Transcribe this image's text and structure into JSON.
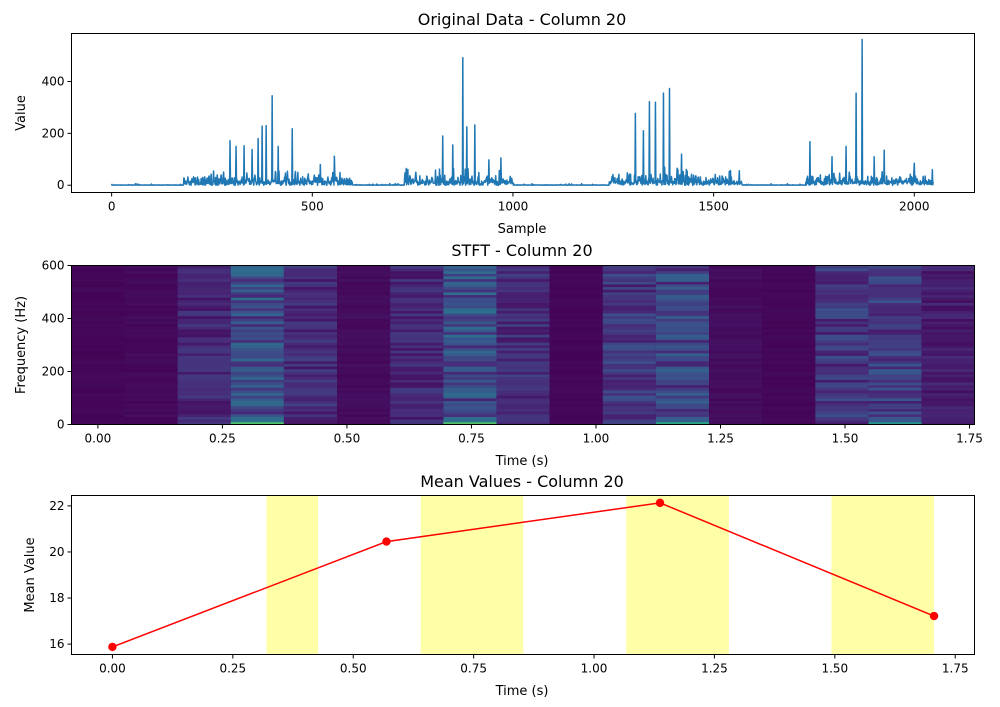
{
  "chart_data": [
    {
      "type": "line",
      "title": "Original Data - Column 20",
      "xlabel": "Sample",
      "ylabel": "Value",
      "xlim": [
        -100,
        2150
      ],
      "ylim": [
        -28,
        585
      ],
      "xticks": [
        0,
        500,
        1000,
        1500,
        2000
      ],
      "yticks": [
        0,
        200,
        400
      ],
      "color": "#1f77b4",
      "n_samples": 2048,
      "active_segments": [
        {
          "start": 180,
          "end": 600,
          "amp": 55
        },
        {
          "start": 730,
          "end": 1000,
          "amp": 65
        },
        {
          "start": 1240,
          "end": 1570,
          "amp": 70
        },
        {
          "start": 1730,
          "end": 2047,
          "amp": 60
        }
      ],
      "peaks": [
        {
          "x": 295,
          "y": 172
        },
        {
          "x": 310,
          "y": 150
        },
        {
          "x": 330,
          "y": 152
        },
        {
          "x": 350,
          "y": 138
        },
        {
          "x": 365,
          "y": 180
        },
        {
          "x": 375,
          "y": 228
        },
        {
          "x": 385,
          "y": 230
        },
        {
          "x": 400,
          "y": 345
        },
        {
          "x": 415,
          "y": 150
        },
        {
          "x": 450,
          "y": 218
        },
        {
          "x": 520,
          "y": 80
        },
        {
          "x": 555,
          "y": 112
        },
        {
          "x": 825,
          "y": 190
        },
        {
          "x": 850,
          "y": 155
        },
        {
          "x": 875,
          "y": 492
        },
        {
          "x": 885,
          "y": 225
        },
        {
          "x": 905,
          "y": 232
        },
        {
          "x": 940,
          "y": 98
        },
        {
          "x": 970,
          "y": 105
        },
        {
          "x": 1305,
          "y": 277
        },
        {
          "x": 1325,
          "y": 210
        },
        {
          "x": 1340,
          "y": 322
        },
        {
          "x": 1355,
          "y": 320
        },
        {
          "x": 1375,
          "y": 355
        },
        {
          "x": 1390,
          "y": 373
        },
        {
          "x": 1420,
          "y": 120
        },
        {
          "x": 1740,
          "y": 168
        },
        {
          "x": 1795,
          "y": 110
        },
        {
          "x": 1830,
          "y": 150
        },
        {
          "x": 1855,
          "y": 355
        },
        {
          "x": 1870,
          "y": 562
        },
        {
          "x": 1900,
          "y": 110
        },
        {
          "x": 1925,
          "y": 135
        },
        {
          "x": 2000,
          "y": 85
        },
        {
          "x": 2045,
          "y": 60
        }
      ]
    },
    {
      "type": "heatmap",
      "title": "STFT - Column 20",
      "xlabel": "Time (s)",
      "ylabel": "Frequency (Hz)",
      "xlim": [
        -0.053,
        1.76
      ],
      "ylim": [
        0,
        600
      ],
      "xticks": [
        0.0,
        0.25,
        0.5,
        0.75,
        1.0,
        1.25,
        1.5,
        1.75
      ],
      "xtick_labels": [
        "0.00",
        "0.25",
        "0.50",
        "0.75",
        "1.00",
        "1.25",
        "1.50",
        "1.75"
      ],
      "yticks": [
        0,
        200,
        400,
        600
      ],
      "colormap": "viridis",
      "time_bin_width": 0.1067,
      "time_bin_intensity": [
        0.02,
        0.03,
        0.14,
        0.3,
        0.16,
        0.04,
        0.14,
        0.3,
        0.16,
        0.02,
        0.2,
        0.25,
        0.04,
        0.02,
        0.2,
        0.22,
        0.1
      ]
    },
    {
      "type": "line",
      "title": "Mean Values - Column 20",
      "xlabel": "Time (s)",
      "ylabel": "Mean Value",
      "xlim": [
        -0.085,
        1.79
      ],
      "ylim": [
        15.55,
        22.45
      ],
      "xticks": [
        0.0,
        0.25,
        0.5,
        0.75,
        1.0,
        1.25,
        1.5,
        1.75
      ],
      "xtick_labels": [
        "0.00",
        "0.25",
        "0.50",
        "0.75",
        "1.00",
        "1.25",
        "1.50",
        "1.75"
      ],
      "yticks": [
        16,
        18,
        20,
        22
      ],
      "line_color": "#ff0000",
      "highlight_color": "#ffff99",
      "x": [
        0.0,
        0.569,
        1.137,
        1.706
      ],
      "y": [
        15.88,
        20.45,
        22.13,
        17.22
      ],
      "highlight_spans": [
        [
          0.32,
          0.427
        ],
        [
          0.64,
          0.853
        ],
        [
          1.067,
          1.28
        ],
        [
          1.493,
          1.706
        ]
      ]
    }
  ]
}
